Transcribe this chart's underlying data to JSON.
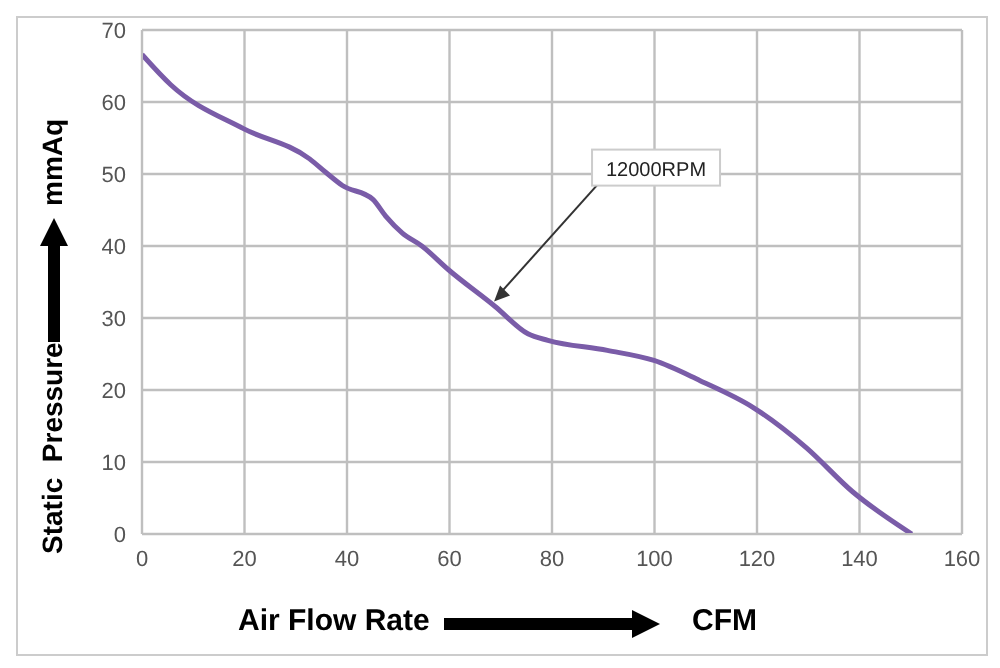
{
  "chart_data": {
    "type": "line",
    "xlabel": "Air  Flow  Rate",
    "ylabel": "Static  Pressure",
    "annotations": [
      "CFM",
      "mmAq",
      {
        "text": "12000RPM",
        "x": 68.3,
        "y": 32
      }
    ],
    "x": [
      0,
      5.6,
      19.8,
      32.7,
      35.9,
      39.1,
      45,
      47.5,
      50.8,
      54.6,
      59.8,
      68.9,
      75.3,
      79.2,
      90.8,
      99.9,
      108.9,
      119.2,
      129.6,
      138.6,
      150.2
    ],
    "series": [
      {
        "color": "#7a5ca8",
        "values": [
          66.6,
          62.4,
          56.3,
          52.1,
          50.2,
          48.4,
          46.5,
          44.2,
          41.8,
          40,
          36.7,
          31.6,
          27.8,
          26.9,
          25.5,
          24.1,
          21.3,
          17.6,
          12,
          5.9,
          0
        ]
      }
    ],
    "xlim": [
      0,
      160
    ],
    "xticks": [
      0,
      20,
      40,
      60,
      80,
      100,
      120,
      140,
      160
    ],
    "ylim": [
      0,
      70
    ],
    "yticks": [
      0,
      10,
      20,
      30,
      40,
      50,
      60,
      70
    ],
    "grid": true,
    "marker": "none",
    "line_style": "solid"
  }
}
